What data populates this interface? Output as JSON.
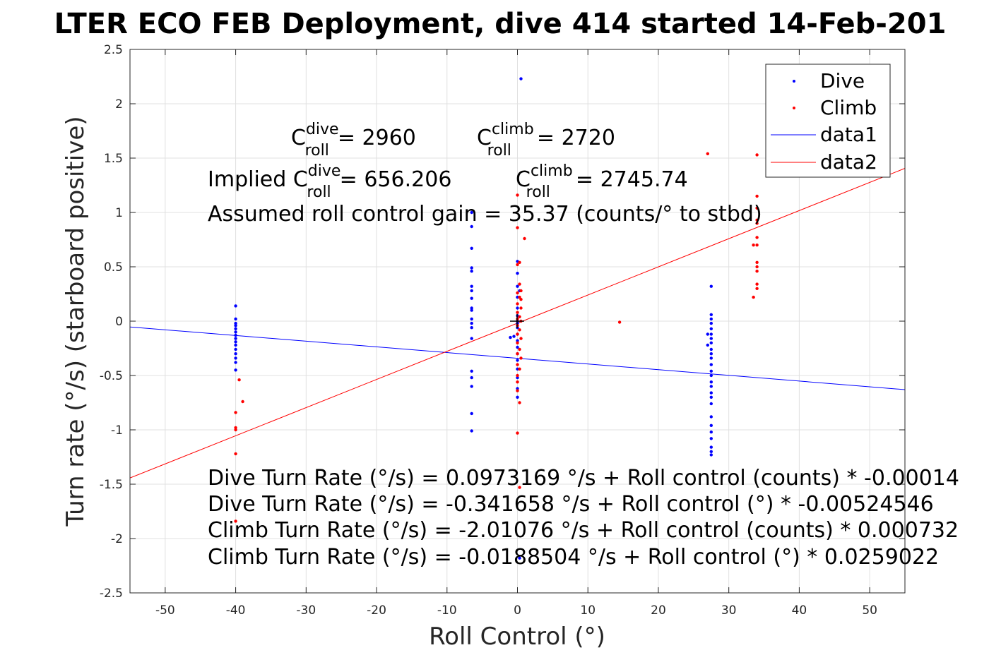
{
  "chart_data": {
    "type": "scatter",
    "title": "LTER ECO FEB Deployment, dive 414 started 14-Feb-201",
    "xlabel": "Roll Control (°)",
    "ylabel": "Turn rate (°/s) (starboard positive)",
    "xlim": [
      -55,
      55
    ],
    "ylim": [
      -2.5,
      2.5
    ],
    "x_ticks": [
      "-50",
      "-40",
      "-30",
      "-20",
      "-10",
      "0",
      "10",
      "20",
      "30",
      "40",
      "50"
    ],
    "y_ticks": [
      "2.5",
      "2",
      "1.5",
      "1",
      "0.5",
      "0",
      "-0.5",
      "-1",
      "-1.5",
      "-2",
      "-2.5"
    ],
    "grid": true,
    "legend_position": "top-right",
    "legend": [
      "Dive",
      "Climb",
      "data1",
      "data2"
    ],
    "colors": {
      "dive": "#0000ff",
      "climb": "#ff0000",
      "axes": "#262626",
      "grid": "#e0e0e0"
    },
    "series": [
      {
        "name": "Dive",
        "style": "points",
        "color": "#0000ff",
        "points": [
          [
            -40,
            0.14
          ],
          [
            -40,
            0.02
          ],
          [
            -40,
            -0.02
          ],
          [
            -40,
            -0.04
          ],
          [
            -40,
            -0.07
          ],
          [
            -40,
            -0.1
          ],
          [
            -40,
            -0.13
          ],
          [
            -40,
            -0.16
          ],
          [
            -40,
            -0.19
          ],
          [
            -40,
            -0.22
          ],
          [
            -40,
            -0.26
          ],
          [
            -40,
            -0.3
          ],
          [
            -40,
            -0.34
          ],
          [
            -40,
            -0.38
          ],
          [
            -40,
            -0.45
          ],
          [
            -6.5,
            1.0
          ],
          [
            -6.5,
            0.87
          ],
          [
            -6.5,
            0.67
          ],
          [
            -6.5,
            0.49
          ],
          [
            -6.5,
            0.46
          ],
          [
            -6.5,
            0.32
          ],
          [
            -6.5,
            0.28
          ],
          [
            -6.5,
            0.21
          ],
          [
            -6.5,
            0.12
          ],
          [
            -6.5,
            0.1
          ],
          [
            -6.5,
            0.02
          ],
          [
            -6.5,
            -0.02
          ],
          [
            -6.5,
            -0.06
          ],
          [
            -6.5,
            -0.16
          ],
          [
            -6.5,
            -0.46
          ],
          [
            -6.5,
            -0.52
          ],
          [
            -6.5,
            -0.6
          ],
          [
            -6.5,
            -0.85
          ],
          [
            -6.5,
            -1.01
          ],
          [
            0.5,
            2.23
          ],
          [
            0,
            0.55
          ],
          [
            0,
            0.44
          ],
          [
            0,
            0.32
          ],
          [
            0.3,
            0.28
          ],
          [
            0,
            0.22
          ],
          [
            0,
            0.12
          ],
          [
            0,
            0.05
          ],
          [
            0,
            0.0
          ],
          [
            0,
            -0.02
          ],
          [
            0,
            -0.06
          ],
          [
            0,
            -0.12
          ],
          [
            0,
            -0.18
          ],
          [
            -0.5,
            -0.14
          ],
          [
            0,
            -0.24
          ],
          [
            0,
            -0.3
          ],
          [
            0,
            -0.36
          ],
          [
            0,
            -0.44
          ],
          [
            0,
            -0.52
          ],
          [
            0,
            -0.62
          ],
          [
            0,
            -0.7
          ],
          [
            0.3,
            -2.18
          ],
          [
            -1,
            -0.15
          ],
          [
            27.5,
            0.32
          ],
          [
            27.5,
            0.06
          ],
          [
            27.5,
            0.02
          ],
          [
            27.5,
            -0.02
          ],
          [
            27.5,
            -0.07
          ],
          [
            27.5,
            -0.12
          ],
          [
            27.5,
            -0.16
          ],
          [
            27.5,
            -0.2
          ],
          [
            27.5,
            -0.26
          ],
          [
            27.5,
            -0.3
          ],
          [
            27.5,
            -0.34
          ],
          [
            27.5,
            -0.4
          ],
          [
            27.5,
            -0.46
          ],
          [
            27.5,
            -0.5
          ],
          [
            27.5,
            -0.56
          ],
          [
            27.5,
            -0.6
          ],
          [
            27.5,
            -0.66
          ],
          [
            27.5,
            -0.7
          ],
          [
            27.5,
            -0.76
          ],
          [
            27.5,
            -0.88
          ],
          [
            27.5,
            -0.96
          ],
          [
            27.5,
            -1.02
          ],
          [
            27.5,
            -1.08
          ],
          [
            27.5,
            -1.16
          ],
          [
            27.5,
            -1.2
          ],
          [
            27.5,
            -1.23
          ],
          [
            27,
            -0.12
          ],
          [
            27,
            -0.22
          ]
        ]
      },
      {
        "name": "Climb",
        "style": "points",
        "color": "#ff0000",
        "points": [
          [
            -39.5,
            -0.54
          ],
          [
            -39,
            -0.74
          ],
          [
            -40,
            -0.84
          ],
          [
            -40,
            -0.98
          ],
          [
            -40,
            -1.0
          ],
          [
            -40,
            -1.22
          ],
          [
            -40,
            -1.84
          ],
          [
            0,
            1.16
          ],
          [
            0,
            0.86
          ],
          [
            1,
            0.76
          ],
          [
            0.3,
            0.54
          ],
          [
            0,
            0.52
          ],
          [
            0.3,
            0.34
          ],
          [
            0.5,
            0.28
          ],
          [
            0,
            0.26
          ],
          [
            0.3,
            0.22
          ],
          [
            0.5,
            0.2
          ],
          [
            0,
            0.16
          ],
          [
            0.5,
            0.12
          ],
          [
            0,
            0.08
          ],
          [
            0.3,
            0.04
          ],
          [
            0,
            0.02
          ],
          [
            0.5,
            0.0
          ],
          [
            0,
            -0.04
          ],
          [
            0.3,
            -0.08
          ],
          [
            0,
            -0.12
          ],
          [
            0.5,
            -0.16
          ],
          [
            0,
            -0.2
          ],
          [
            0.3,
            -0.26
          ],
          [
            0,
            -0.3
          ],
          [
            0.5,
            -0.34
          ],
          [
            0,
            -0.4
          ],
          [
            0.3,
            -0.44
          ],
          [
            0,
            -0.5
          ],
          [
            0,
            -0.56
          ],
          [
            0,
            -0.64
          ],
          [
            0.3,
            -0.75
          ],
          [
            0,
            -1.03
          ],
          [
            0.3,
            -1.53
          ],
          [
            14.5,
            -0.01
          ],
          [
            27,
            1.54
          ],
          [
            34,
            1.53
          ],
          [
            34,
            1.15
          ],
          [
            34,
            1.04
          ],
          [
            34,
            0.93
          ],
          [
            34,
            0.9
          ],
          [
            34,
            0.77
          ],
          [
            34,
            0.7
          ],
          [
            33.5,
            0.7
          ],
          [
            34,
            0.54
          ],
          [
            34,
            0.5
          ],
          [
            34,
            0.46
          ],
          [
            34,
            0.34
          ],
          [
            34,
            0.3
          ],
          [
            33.5,
            0.22
          ]
        ]
      },
      {
        "name": "data1",
        "style": "line",
        "color": "#0000ff",
        "intercept": -0.341658,
        "slope": -0.00524546,
        "points": [
          [
            -55,
            -0.053
          ],
          [
            55,
            -0.63
          ]
        ]
      },
      {
        "name": "data2",
        "style": "line",
        "color": "#ff0000",
        "intercept": -0.0188504,
        "slope": 0.0259022,
        "points": [
          [
            -55,
            -1.443
          ],
          [
            55,
            1.406
          ]
        ]
      }
    ],
    "annotations": {
      "c_roll_dive": {
        "prefix": "C",
        "sup": "dive",
        "sub": "roll",
        "value": "= 2960"
      },
      "c_roll_climb": {
        "prefix": "C",
        "sup": "climb",
        "sub": "roll",
        "value": "= 2720"
      },
      "implied_dive": {
        "prefix": "Implied C",
        "sup": "dive",
        "sub": "roll",
        "value": "= 656.206"
      },
      "implied_climb": {
        "prefix": "C",
        "sup": "climb",
        "sub": "roll",
        "value": "= 2745.74"
      },
      "gain": "Assumed roll control gain = 35.37 (counts/° to stbd)",
      "equations": [
        "Dive Turn Rate (°/s) = 0.0973169 °/s + Roll control (counts) * -0.00014",
        "Dive Turn Rate (°/s) = -0.341658 °/s + Roll control (°) * -0.00524546",
        "Climb Turn Rate (°/s) = -2.01076 °/s + Roll control (counts) * 0.000732",
        "Climb Turn Rate (°/s) = -0.0188504 °/s + Roll control (°) * 0.0259022"
      ]
    }
  }
}
